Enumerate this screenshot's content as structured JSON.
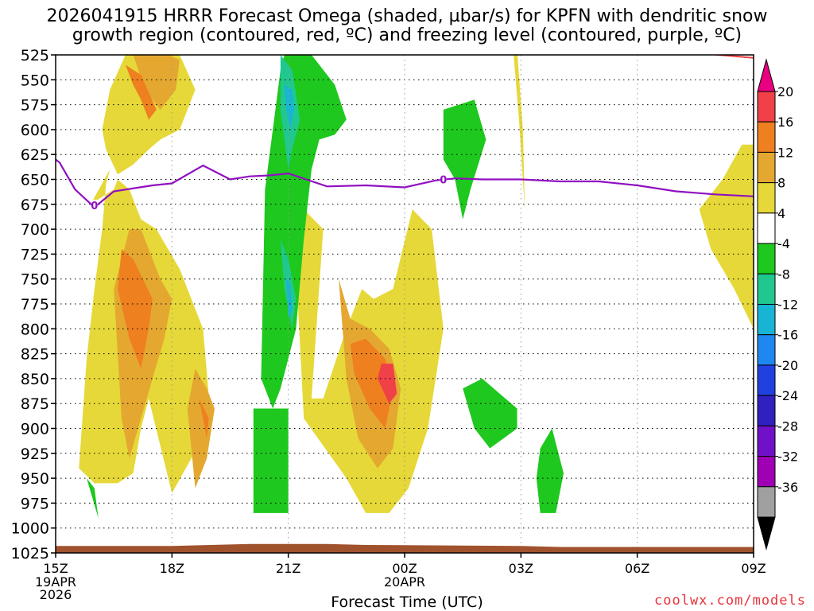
{
  "title": {
    "line1": "2026041915 HRRR Forecast Omega (shaded, µbar/s) for KPFN with dendritic snow",
    "line2": "growth region (contoured, red, ºC) and freezing level (contoured, purple, ºC)"
  },
  "chart_data": {
    "type": "time-height cross section",
    "xlabel": "Forecast Time (UTC)",
    "x_ticks": [
      {
        "label": "15Z",
        "sub": [
          "19APR",
          "2026"
        ],
        "hour": 0
      },
      {
        "label": "18Z",
        "sub": [],
        "hour": 3
      },
      {
        "label": "21Z",
        "sub": [],
        "hour": 6
      },
      {
        "label": "00Z",
        "sub": [
          "20APR"
        ],
        "hour": 9
      },
      {
        "label": "03Z",
        "sub": [],
        "hour": 12
      },
      {
        "label": "06Z",
        "sub": [],
        "hour": 15
      },
      {
        "label": "09Z",
        "sub": [],
        "hour": 18
      }
    ],
    "xlim_hours": [
      0,
      18
    ],
    "y_ticks": [
      525,
      550,
      575,
      600,
      625,
      650,
      675,
      700,
      725,
      750,
      775,
      800,
      825,
      850,
      875,
      900,
      925,
      950,
      975,
      1000,
      1025
    ],
    "ylim_hPa": [
      525,
      1025
    ],
    "colorbar": {
      "labels": [
        "20",
        "16",
        "12",
        "8",
        "4",
        "-4",
        "-8",
        "-12",
        "-16",
        "-20",
        "-24",
        "-28",
        "-32",
        "-36"
      ],
      "colors": [
        "#e80080",
        "#f04048",
        "#ee8020",
        "#e4a830",
        "#e6d838",
        "#ffffff",
        "#1ec81e",
        "#20c890",
        "#18b4d4",
        "#1e88f0",
        "#2040e0",
        "#3020c0",
        "#7010c8",
        "#a000b4",
        "#a0a0a0",
        "#000000"
      ]
    },
    "freezing_level": {
      "label": "0",
      "hours": [
        0,
        0.1,
        0.5,
        1.0,
        1.5,
        2.5,
        3.0,
        3.8,
        4.5,
        5.0,
        5.5,
        6.0,
        7.0,
        8.0,
        9.0,
        9.8,
        10.3,
        11.0,
        12.0,
        13.0,
        14.0,
        15.0,
        16.0,
        17.0,
        18.0
      ],
      "pressure": [
        630,
        633,
        660,
        678,
        662,
        656,
        654,
        636,
        650,
        647,
        646,
        644,
        657,
        656,
        658,
        651,
        649,
        650,
        650,
        652,
        652,
        656,
        662,
        665,
        667
      ]
    },
    "dgz_line": {
      "hours": [
        16.5,
        18.0
      ],
      "pressure": [
        523,
        528
      ]
    },
    "omega_regions": [
      {
        "level": 4,
        "hours": [
          1.8,
          1.4,
          1.2,
          1.3,
          1.6,
          2.0,
          2.4,
          2.7,
          3.2,
          3.6,
          3.2,
          2.7,
          2.1,
          1.8
        ],
        "pressure": [
          525,
          560,
          600,
          620,
          645,
          635,
          620,
          610,
          600,
          560,
          525,
          525,
          525,
          525
        ]
      },
      {
        "level": 4,
        "hours": [
          0.9,
          1.4,
          1.3,
          1.2,
          1.0,
          0.8,
          0.6,
          1.0,
          1.6,
          2.0,
          2.2,
          2.4,
          3.0,
          3.5,
          4.0,
          3.8,
          3.4,
          3.2,
          2.6,
          2.2,
          1.9,
          1.6,
          1.5
        ],
        "pressure": [
          675,
          640,
          655,
          700,
          760,
          830,
          940,
          955,
          955,
          945,
          900,
          870,
          965,
          930,
          890,
          800,
          760,
          740,
          700,
          690,
          660,
          650,
          660
        ]
      },
      {
        "level": 4,
        "hours": [
          6.6,
          6.9,
          6.4,
          6.2,
          6.4,
          7.5,
          8.0,
          8.6,
          9.1,
          9.6,
          10.0,
          9.7,
          9.2,
          8.7,
          8.2,
          7.9,
          7.5,
          6.9
        ],
        "pressure": [
          870,
          700,
          680,
          740,
          890,
          950,
          985,
          985,
          960,
          900,
          800,
          700,
          680,
          760,
          770,
          760,
          800,
          870
        ]
      },
      {
        "level": 4,
        "hours": [
          17.2,
          16.6,
          16.9,
          17.5,
          18.0,
          18.0,
          17.7
        ],
        "pressure": [
          650,
          680,
          720,
          760,
          800,
          615,
          615
        ]
      },
      {
        "level": 4,
        "hours": [
          11.8,
          11.95,
          12.1,
          12.05,
          11.9
        ],
        "pressure": [
          520,
          590,
          680,
          600,
          520
        ]
      },
      {
        "level": 8,
        "hours": [
          2.0,
          2.3,
          2.7,
          3.1,
          3.2,
          2.9,
          2.6,
          2.3
        ],
        "pressure": [
          525,
          560,
          580,
          560,
          530,
          525,
          525,
          525
        ]
      },
      {
        "level": 8,
        "hours": [
          1.9,
          2.2,
          2.7,
          3.0,
          2.8,
          2.5,
          2.2,
          1.9,
          1.7,
          1.5
        ],
        "pressure": [
          700,
          700,
          750,
          770,
          810,
          850,
          890,
          930,
          890,
          760
        ]
      },
      {
        "level": 8,
        "hours": [
          3.6,
          3.9,
          4.1,
          3.9,
          3.6,
          3.4
        ],
        "pressure": [
          840,
          860,
          880,
          930,
          960,
          880
        ]
      },
      {
        "level": 8,
        "hours": [
          7.3,
          7.6,
          8.1,
          8.6,
          8.9,
          8.7,
          8.3,
          7.8,
          7.5
        ],
        "pressure": [
          750,
          790,
          800,
          820,
          860,
          920,
          940,
          910,
          850
        ]
      },
      {
        "level": 12,
        "hours": [
          1.8,
          2.2,
          2.6,
          2.4,
          2.2,
          2.0,
          1.8
        ],
        "pressure": [
          535,
          545,
          580,
          590,
          570,
          555,
          535
        ]
      },
      {
        "level": 12,
        "hours": [
          1.7,
          2.0,
          2.5,
          2.4,
          2.2,
          1.9,
          1.6
        ],
        "pressure": [
          720,
          730,
          770,
          800,
          840,
          810,
          760
        ]
      },
      {
        "level": 12,
        "hours": [
          3.7,
          3.95,
          3.9,
          3.8
        ],
        "pressure": [
          870,
          890,
          910,
          890
        ]
      },
      {
        "level": 12,
        "hours": [
          7.6,
          8.0,
          8.5,
          8.7,
          8.5,
          8.1,
          7.7
        ],
        "pressure": [
          815,
          810,
          830,
          860,
          900,
          880,
          845
        ]
      },
      {
        "level": 16,
        "hours": [
          8.4,
          8.7,
          8.8,
          8.6,
          8.3
        ],
        "pressure": [
          835,
          835,
          865,
          875,
          850
        ]
      },
      {
        "level": -4,
        "hours": [
          6.0,
          6.6,
          6.8,
          7.2,
          7.5,
          7.2,
          6.8,
          6.6,
          6.4,
          6.2,
          5.8,
          5.6,
          5.3,
          5.4,
          5.6,
          5.8,
          5.9,
          6.0
        ],
        "pressure": [
          525,
          525,
          535,
          555,
          590,
          605,
          610,
          640,
          710,
          800,
          860,
          880,
          850,
          660,
          600,
          540,
          525,
          525
        ]
      },
      {
        "level": -4,
        "hours": [
          10.0,
          10.8,
          11.1,
          10.7,
          10.5,
          10.3,
          10.0
        ],
        "pressure": [
          580,
          570,
          610,
          660,
          690,
          650,
          630
        ]
      },
      {
        "level": -4,
        "hours": [
          5.1,
          5.6,
          6.0,
          6.0,
          5.1
        ],
        "pressure": [
          880,
          880,
          880,
          985,
          985
        ]
      },
      {
        "level": -4,
        "hours": [
          0.6,
          0.8,
          1.1,
          1.0
        ],
        "pressure": [
          940,
          950,
          990,
          960
        ]
      },
      {
        "level": -4,
        "hours": [
          10.5,
          11.0,
          11.9,
          11.9,
          11.2,
          10.8
        ],
        "pressure": [
          860,
          850,
          880,
          900,
          920,
          900
        ]
      },
      {
        "level": -4,
        "hours": [
          12.5,
          12.8,
          13.1,
          12.9,
          12.5,
          12.4
        ],
        "pressure": [
          920,
          900,
          945,
          985,
          985,
          950
        ]
      },
      {
        "level": -8,
        "hours": [
          5.8,
          6.1,
          6.3,
          6.1,
          6.0,
          5.8
        ],
        "pressure": [
          525,
          540,
          590,
          620,
          640,
          580
        ]
      },
      {
        "level": -8,
        "hours": [
          5.8,
          6.0,
          6.2,
          6.1,
          5.9
        ],
        "pressure": [
          710,
          730,
          770,
          800,
          760
        ]
      },
      {
        "level": -12,
        "hours": [
          5.9,
          6.1,
          6.15,
          6.05,
          5.95
        ],
        "pressure": [
          555,
          560,
          580,
          600,
          580
        ]
      },
      {
        "level": -12,
        "hours": [
          5.95,
          6.05,
          6.1,
          6.0
        ],
        "pressure": [
          750,
          755,
          780,
          790
        ]
      }
    ],
    "ground": {
      "hours": [
        0,
        3,
        4,
        5,
        6,
        7,
        8,
        12,
        13,
        18
      ],
      "pressure": [
        1018,
        1018,
        1017,
        1016,
        1016,
        1016,
        1017,
        1018,
        1019,
        1019
      ]
    }
  },
  "credit": "coolwx.com/models"
}
